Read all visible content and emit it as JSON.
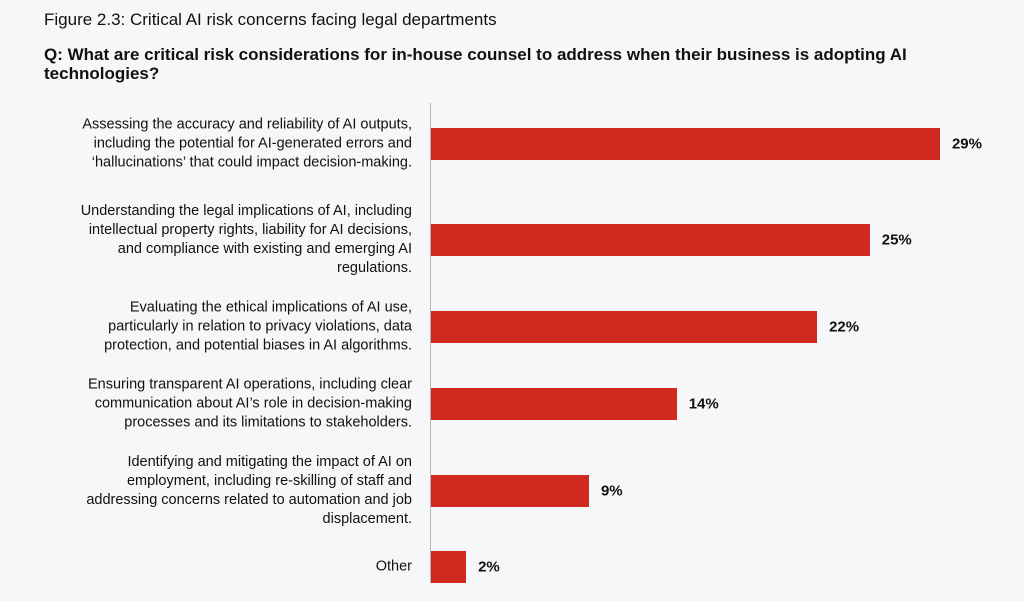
{
  "title": "Figure 2.3: Critical AI risk concerns facing legal departments",
  "question": "Q: What are critical risk considerations for in-house counsel to address when their business is adopting AI technologies?",
  "colors": {
    "bar": "#cf2a1f",
    "background": "#f6f7f9"
  },
  "chart_data": {
    "type": "bar",
    "orientation": "horizontal",
    "categories": [
      "Assessing the accuracy and reliability of AI outputs, including the potential for AI-generated errors and ‘hallucinations’ that could impact decision-making.",
      "Understanding the legal implications of AI, including intellectual property rights, liability for AI decisions, and compliance with existing and emerging AI regulations.",
      "Evaluating the ethical implications of AI use, particularly in relation to privacy violations, data protection, and potential biases in AI algorithms.",
      "Ensuring transparent AI operations, including clear communication about AI’s role in decision-making processes and its limitations to stakeholders.",
      "Identifying and mitigating the impact of AI on employment, including re-skilling of staff and addressing concerns related to automation and job displacement.",
      "Other"
    ],
    "values": [
      29,
      25,
      22,
      14,
      9,
      2
    ],
    "labels": [
      "29%",
      "25%",
      "22%",
      "14%",
      "9%",
      "2%"
    ],
    "unit": "%",
    "grid": false
  }
}
